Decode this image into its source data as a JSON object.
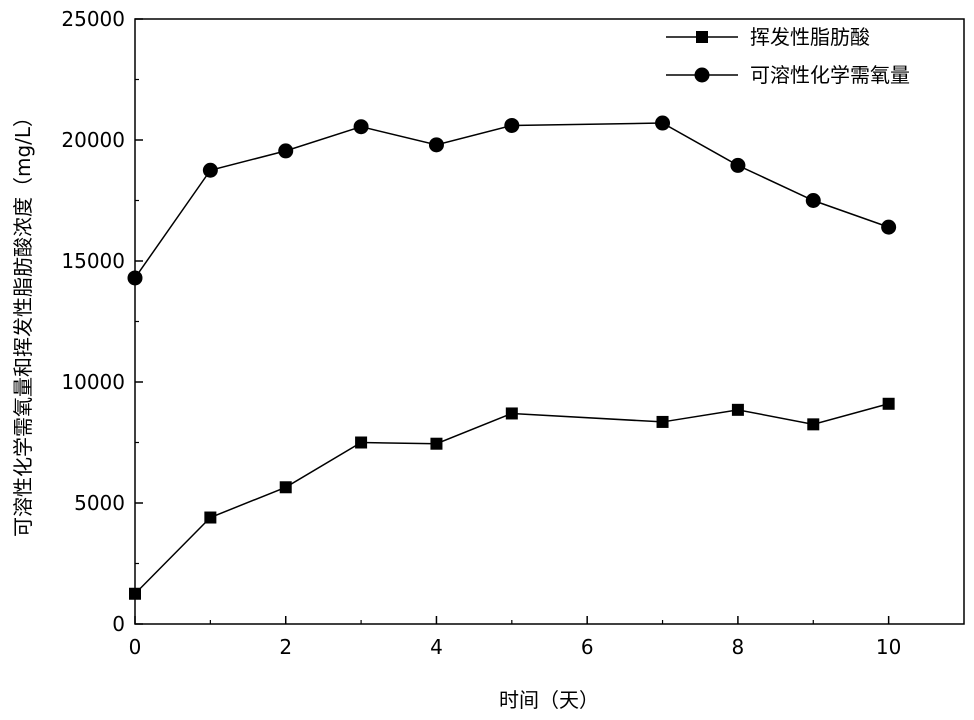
{
  "chart_data": {
    "type": "line",
    "xlabel": "时间（天）",
    "ylabel": "可溶性化学需氧量和挥发性脂肪酸浓度（mg/L）",
    "xlim": [
      0,
      11
    ],
    "ylim": [
      0,
      25000
    ],
    "xticks": [
      0,
      2,
      4,
      6,
      8,
      10
    ],
    "yticks": [
      0,
      5000,
      10000,
      15000,
      20000,
      25000
    ],
    "legend_position": "top-right",
    "series": [
      {
        "name": "挥发性脂肪酸",
        "marker": "square",
        "color": "#000000",
        "x": [
          0,
          1,
          2,
          3,
          4,
          5,
          7,
          8,
          9,
          10
        ],
        "y": [
          1250,
          4400,
          5650,
          7500,
          7450,
          8700,
          8350,
          8850,
          8250,
          9100
        ]
      },
      {
        "name": "可溶性化学需氧量",
        "marker": "circle",
        "color": "#000000",
        "x": [
          0,
          1,
          2,
          3,
          4,
          5,
          7,
          8,
          9,
          10
        ],
        "y": [
          14300,
          18750,
          19550,
          20550,
          19800,
          20600,
          20700,
          18950,
          17500,
          16400
        ]
      }
    ]
  }
}
